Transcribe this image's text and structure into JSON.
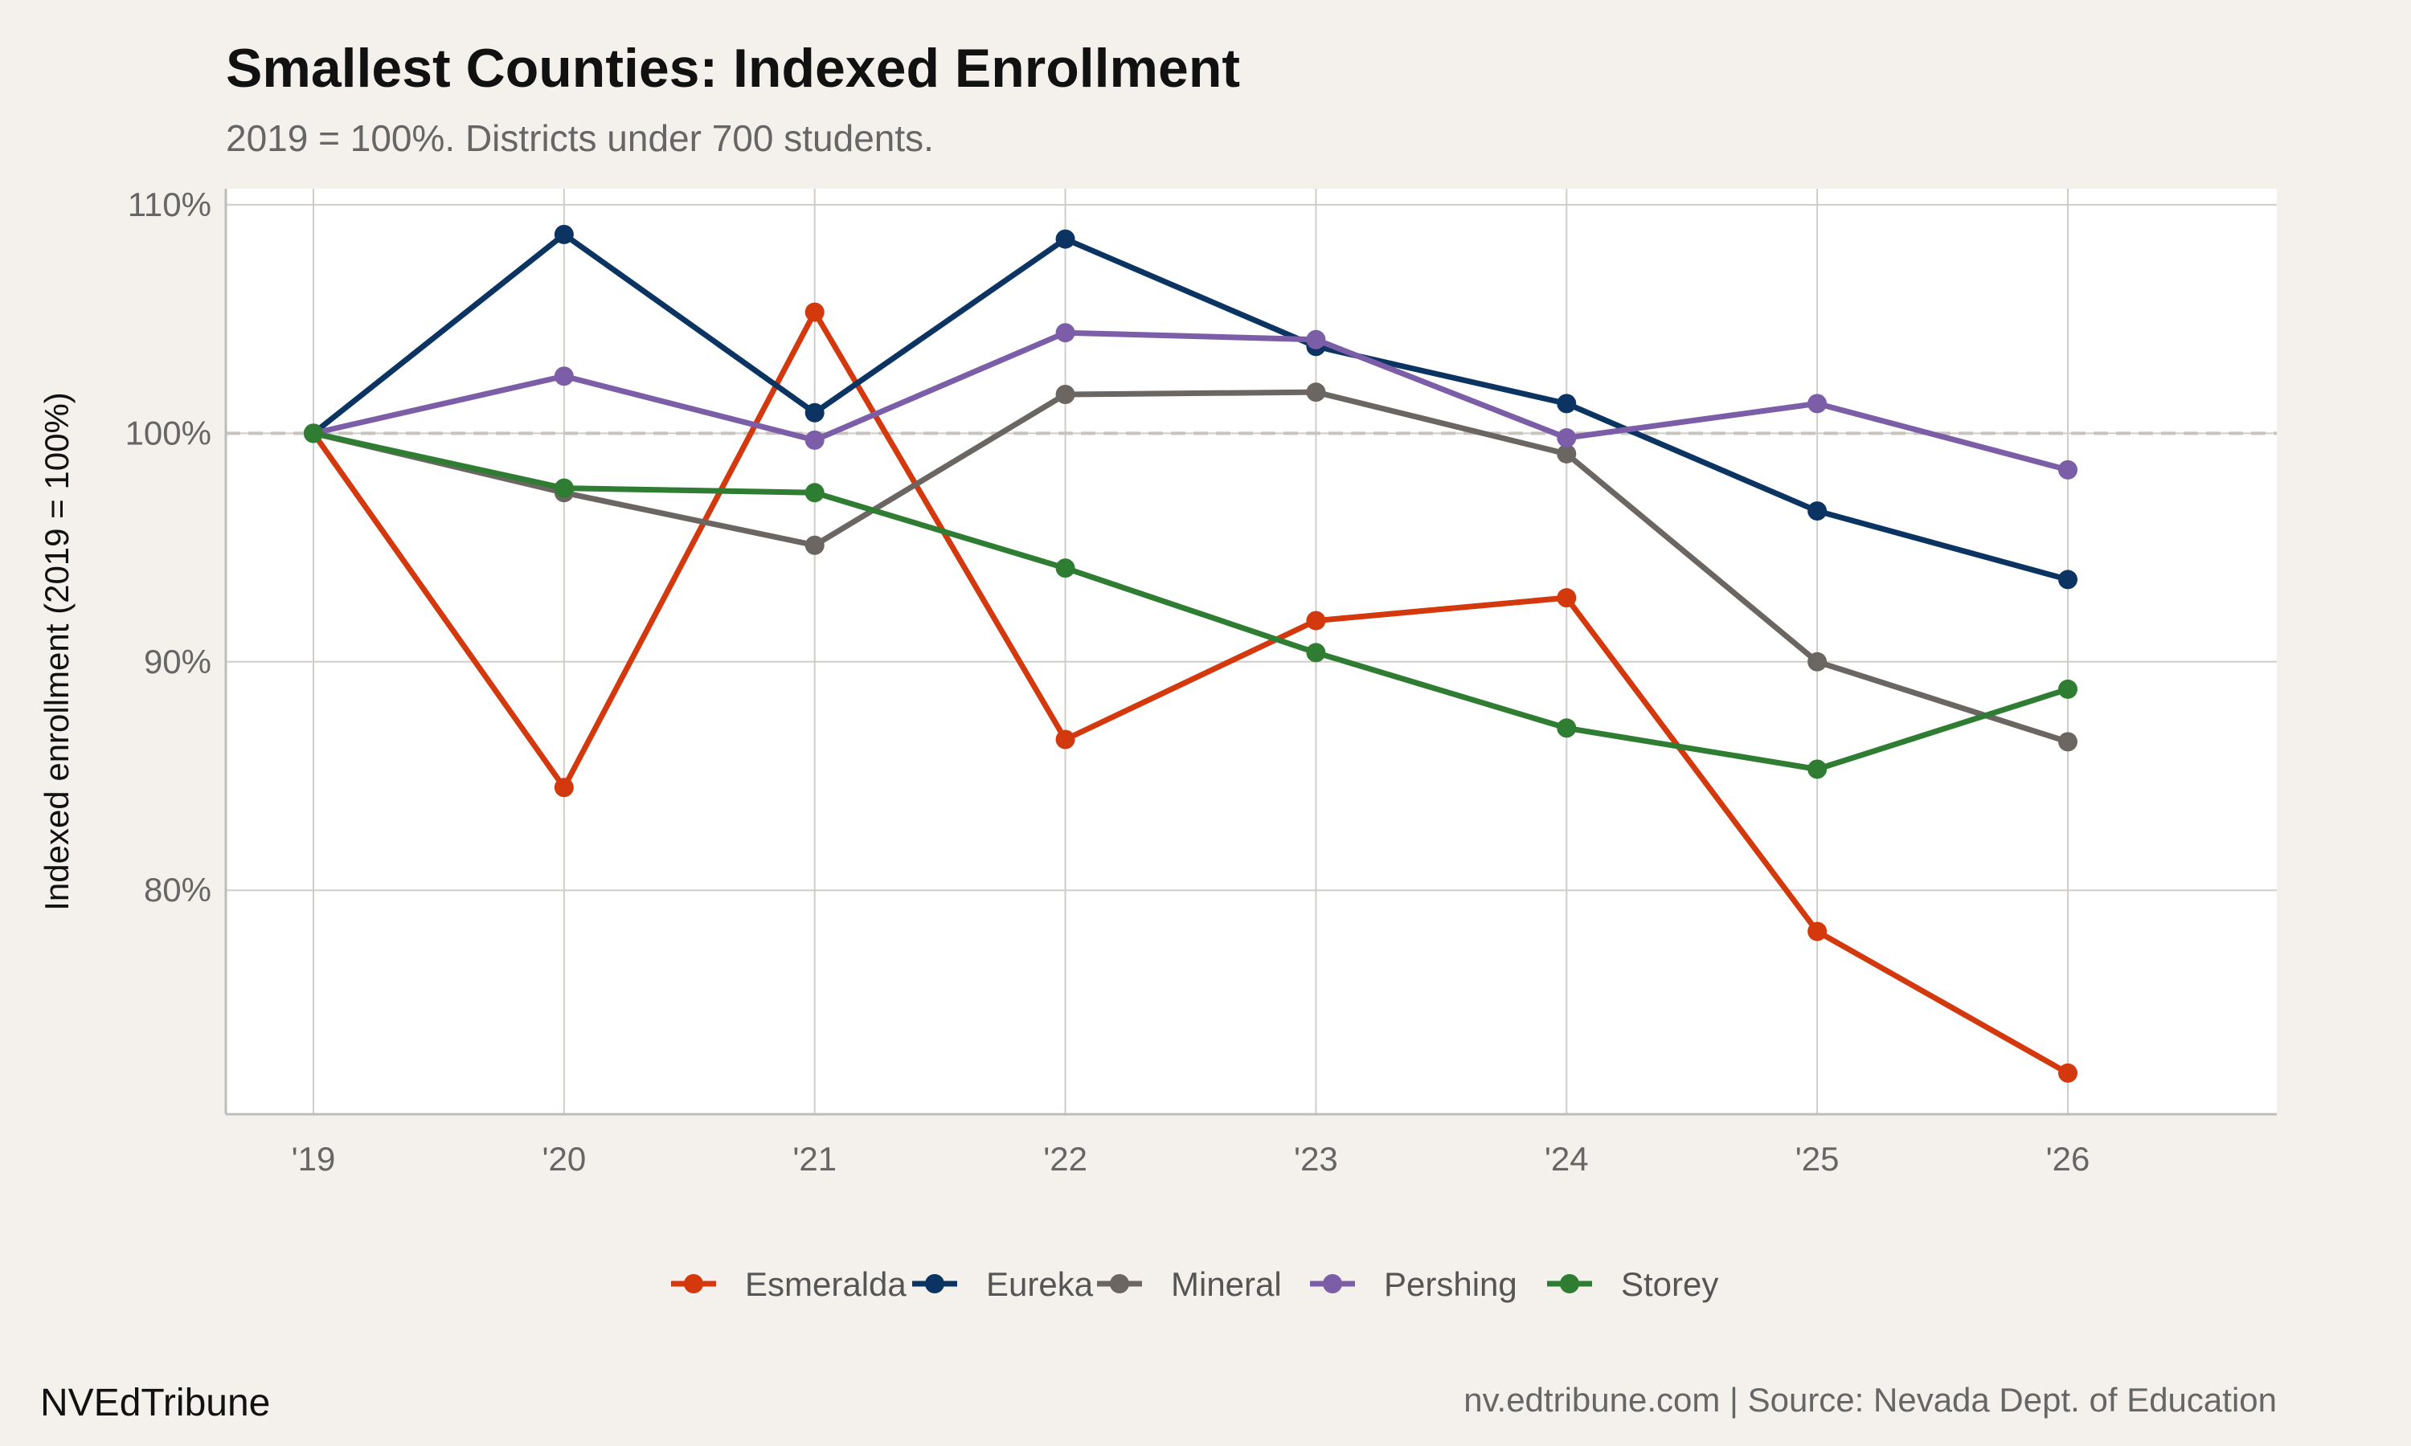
{
  "chart_data": {
    "type": "line",
    "title": "Smallest Counties: Indexed Enrollment",
    "subtitle": "2019 = 100%. Districts under 700 students.",
    "xlabel": "",
    "ylabel": "Indexed enrollment (2019 = 100%)",
    "categories": [
      "'19",
      "'20",
      "'21",
      "'22",
      "'23",
      "'24",
      "'25",
      "'26"
    ],
    "yticks": [
      80,
      90,
      100,
      110
    ],
    "ytick_labels": [
      "80%",
      "90%",
      "100%",
      "110%"
    ],
    "ylim": [
      70.2,
      110.7
    ],
    "reference_line": 100,
    "grid": true,
    "legend_position": "bottom",
    "series": [
      {
        "name": "Esmeralda",
        "color": "#d4380d",
        "values": [
          100,
          84.5,
          105.3,
          86.6,
          91.8,
          92.8,
          78.2,
          72.0
        ]
      },
      {
        "name": "Eureka",
        "color": "#0b3463",
        "values": [
          100,
          108.7,
          100.9,
          108.5,
          103.8,
          101.3,
          96.6,
          93.6
        ]
      },
      {
        "name": "Mineral",
        "color": "#6b6661",
        "values": [
          100,
          97.4,
          95.1,
          101.7,
          101.8,
          99.1,
          90.0,
          86.5
        ]
      },
      {
        "name": "Pershing",
        "color": "#7b5ea7",
        "values": [
          100,
          102.5,
          99.7,
          104.4,
          104.1,
          99.8,
          101.3,
          98.4
        ]
      },
      {
        "name": "Storey",
        "color": "#2e7d32",
        "values": [
          100,
          97.6,
          97.4,
          94.1,
          90.4,
          87.1,
          85.3,
          88.8
        ]
      }
    ]
  },
  "footer": {
    "brand": "NVEdTribune",
    "source": "nv.edtribune.com | Source: Nevada Dept. of Education"
  }
}
